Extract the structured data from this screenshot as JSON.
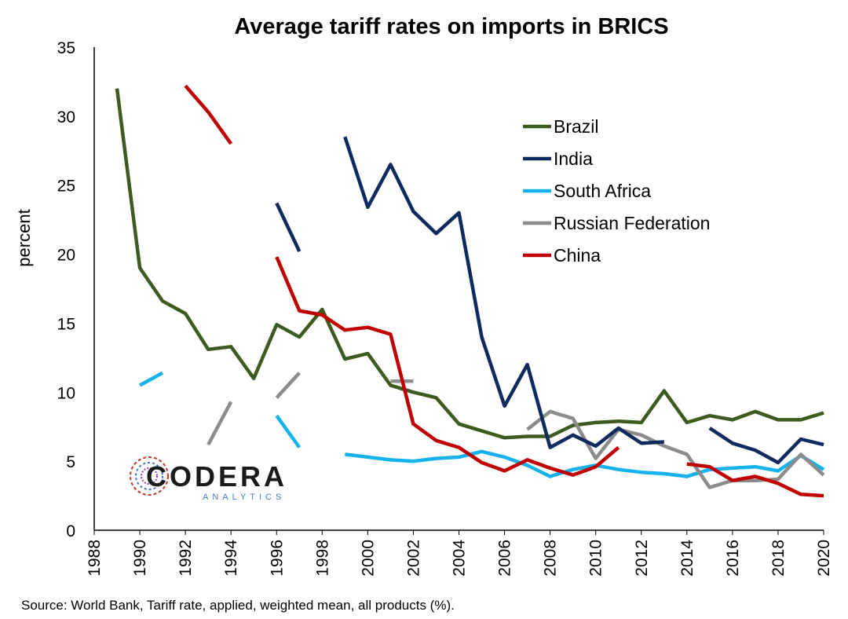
{
  "chart_data": {
    "type": "line",
    "title": "Average tariff rates on imports in BRICS",
    "ylabel": "percent",
    "xlabel": "",
    "xlim": [
      1988,
      2020
    ],
    "ylim": [
      0,
      35
    ],
    "x_ticks": [
      "1988",
      "1990",
      "1992",
      "1994",
      "1996",
      "1998",
      "2000",
      "2002",
      "2004",
      "2006",
      "2008",
      "2010",
      "2012",
      "2014",
      "2016",
      "2018",
      "2020"
    ],
    "y_ticks": [
      "0",
      "5",
      "10",
      "15",
      "20",
      "25",
      "30",
      "35"
    ],
    "grid": false,
    "legend_position": "top-right",
    "series": [
      {
        "name": "Brazil",
        "color": "#3d5a1f",
        "x": [
          1989,
          1990,
          1991,
          1992,
          1993,
          1994,
          1995,
          1996,
          1997,
          1998,
          1999,
          2000,
          2001,
          2002,
          2003,
          2004,
          2005,
          2006,
          2007,
          2008,
          2009,
          2010,
          2011,
          2012,
          2013,
          2014,
          2015,
          2016,
          2017,
          2018,
          2019,
          2020
        ],
        "y": [
          32.0,
          19.0,
          16.6,
          15.7,
          13.1,
          13.3,
          11.0,
          14.9,
          14.0,
          16.0,
          12.4,
          12.8,
          10.5,
          10.0,
          9.6,
          7.7,
          7.2,
          6.7,
          6.8,
          6.8,
          7.6,
          7.8,
          7.9,
          7.8,
          10.1,
          7.8,
          8.3,
          8.0,
          8.6,
          8.0,
          8.0,
          8.5
        ]
      },
      {
        "name": "India",
        "color": "#0f2a5f",
        "x": [
          1996,
          1997,
          null,
          1999,
          2000,
          2001,
          2002,
          2003,
          2004,
          2005,
          2006,
          2007,
          2008,
          2009,
          2010,
          2011,
          2012,
          2013,
          null,
          2015,
          2016,
          2017,
          2018,
          2019,
          2020
        ],
        "y": [
          23.7,
          20.2,
          null,
          28.5,
          23.4,
          26.5,
          23.1,
          21.5,
          23.0,
          14.0,
          9.0,
          12.0,
          6.0,
          6.9,
          6.1,
          7.4,
          6.3,
          6.4,
          null,
          7.4,
          6.3,
          5.8,
          4.9,
          6.6,
          6.2
        ]
      },
      {
        "name": "South Africa",
        "color": "#17b2ec",
        "x": [
          1990,
          1991,
          null,
          1996,
          1997,
          null,
          1999,
          2000,
          2001,
          2002,
          2003,
          2004,
          2005,
          2006,
          2007,
          2008,
          2009,
          2010,
          2011,
          2012,
          2013,
          2014,
          2015,
          2016,
          2017,
          2018,
          2019,
          2020
        ],
        "y": [
          10.5,
          11.4,
          null,
          8.3,
          6.0,
          null,
          5.5,
          5.3,
          5.1,
          5.0,
          5.2,
          5.3,
          5.7,
          5.3,
          4.7,
          3.9,
          4.4,
          4.7,
          4.4,
          4.2,
          4.1,
          3.9,
          4.4,
          4.5,
          4.6,
          4.3,
          5.4,
          4.4
        ]
      },
      {
        "name": "Russian Federation",
        "color": "#8c8c8c",
        "x": [
          1993,
          1994,
          null,
          1996,
          1997,
          null,
          2001,
          2002,
          null,
          2007,
          2008,
          2009,
          2010,
          2011,
          2012,
          2013,
          2014,
          2015,
          2016,
          2017,
          2018,
          2019,
          2020
        ],
        "y": [
          6.2,
          9.3,
          null,
          9.6,
          11.4,
          null,
          10.8,
          10.8,
          null,
          7.3,
          8.6,
          8.1,
          5.2,
          7.3,
          6.9,
          6.1,
          5.5,
          3.1,
          3.6,
          3.6,
          3.7,
          5.5,
          4.0
        ]
      },
      {
        "name": "China",
        "color": "#c00000",
        "x": [
          1992,
          1993,
          1994,
          null,
          1996,
          1997,
          1998,
          1999,
          2000,
          2001,
          2002,
          2003,
          2004,
          2005,
          2006,
          2007,
          2008,
          2009,
          2010,
          2011,
          null,
          2014,
          2015,
          2016,
          2017,
          2018,
          2019,
          2020
        ],
        "y": [
          32.2,
          30.3,
          28.0,
          null,
          19.8,
          15.9,
          15.6,
          14.5,
          14.7,
          14.2,
          7.7,
          6.5,
          6.0,
          4.9,
          4.3,
          5.1,
          4.5,
          4.0,
          4.6,
          6.0,
          null,
          4.8,
          4.6,
          3.6,
          3.9,
          3.4,
          2.6,
          2.5
        ]
      }
    ]
  },
  "source": "Source: World Bank, Tariff rate, applied, weighted mean, all products (%).",
  "logo": {
    "name": "CODERA",
    "tagline": "ANALYTICS"
  }
}
